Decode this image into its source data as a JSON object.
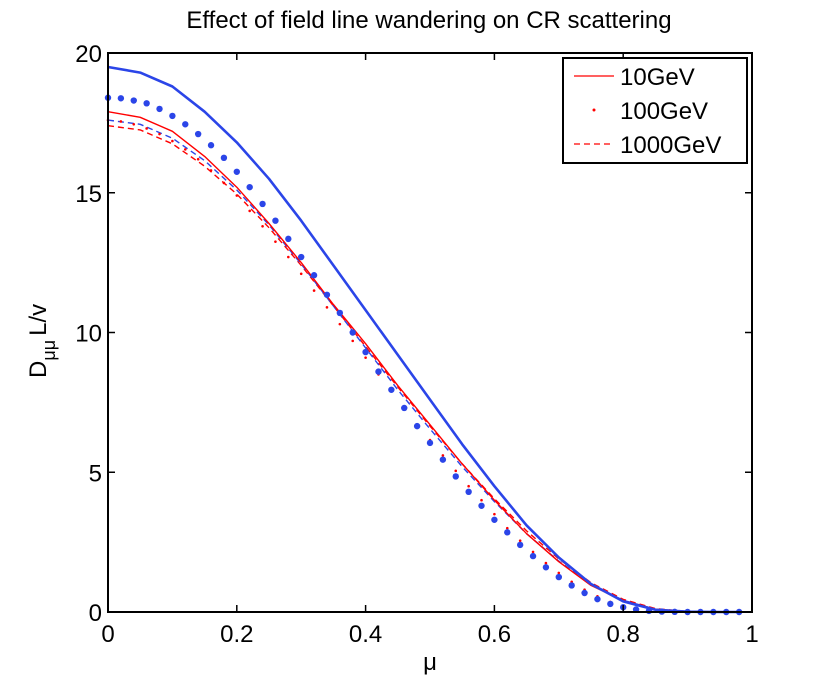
{
  "chart_data": {
    "type": "line",
    "title": "Effect of field line wandering on CR scattering",
    "xlabel": "μ",
    "ylabel": "D_μμ L/v",
    "ylabel_main": "D",
    "ylabel_sub": "μμ",
    "ylabel_tail": "L/v",
    "xlim": [
      0,
      1
    ],
    "ylim": [
      0,
      20
    ],
    "xticks": [
      0,
      0.2,
      0.4,
      0.6,
      0.8,
      1
    ],
    "xtick_labels": [
      "0",
      "0.2",
      "0.4",
      "0.6",
      "0.8",
      "1"
    ],
    "yticks": [
      0,
      5,
      10,
      15,
      20
    ],
    "ytick_labels": [
      "0",
      "5",
      "10",
      "15",
      "20"
    ],
    "legend": {
      "position": "top-right",
      "entries": [
        {
          "label": "10GeV",
          "style": "solid",
          "color": "#ff0000"
        },
        {
          "label": "100GeV",
          "style": "dotted",
          "color": "#ff0000"
        },
        {
          "label": "1000GeV",
          "style": "dashed",
          "color": "#ff0000"
        }
      ]
    },
    "series": [
      {
        "name": "10GeV (red)",
        "color": "#ff0000",
        "style": "solid",
        "x": [
          0,
          0.05,
          0.1,
          0.15,
          0.2,
          0.25,
          0.3,
          0.35,
          0.4,
          0.45,
          0.5,
          0.55,
          0.6,
          0.65,
          0.7,
          0.75,
          0.8,
          0.85,
          0.9,
          0.95,
          0.98
        ],
        "y": [
          17.9,
          17.7,
          17.2,
          16.3,
          15.2,
          13.9,
          12.5,
          11.0,
          9.6,
          8.1,
          6.7,
          5.3,
          4.0,
          2.8,
          1.8,
          0.95,
          0.4,
          0.1,
          0.02,
          0.0,
          0.0
        ]
      },
      {
        "name": "10GeV (blue)",
        "color": "#2b45e8",
        "style": "solid",
        "x": [
          0,
          0.05,
          0.1,
          0.15,
          0.2,
          0.25,
          0.3,
          0.35,
          0.4,
          0.45,
          0.5,
          0.55,
          0.6,
          0.65,
          0.7,
          0.75,
          0.8,
          0.85,
          0.9,
          0.95,
          0.98
        ],
        "y": [
          19.5,
          19.3,
          18.8,
          17.9,
          16.8,
          15.5,
          14.0,
          12.4,
          10.8,
          9.2,
          7.6,
          6.0,
          4.5,
          3.1,
          1.95,
          1.0,
          0.38,
          0.08,
          0.01,
          0.0,
          0.0
        ]
      },
      {
        "name": "100GeV (red)",
        "color": "#ff0000",
        "style": "dotted",
        "x": [
          0,
          0.02,
          0.04,
          0.06,
          0.08,
          0.1,
          0.12,
          0.14,
          0.16,
          0.18,
          0.2,
          0.22,
          0.24,
          0.26,
          0.28,
          0.3,
          0.32,
          0.34,
          0.36,
          0.38,
          0.4,
          0.42,
          0.44,
          0.46,
          0.48,
          0.5,
          0.52,
          0.54,
          0.56,
          0.58,
          0.6,
          0.62,
          0.64,
          0.66,
          0.68,
          0.7,
          0.72,
          0.74,
          0.76,
          0.78,
          0.8,
          0.82,
          0.84,
          0.86,
          0.88,
          0.9,
          0.92,
          0.94,
          0.96,
          0.98
        ],
        "y": [
          17.6,
          17.55,
          17.45,
          17.3,
          17.1,
          16.85,
          16.55,
          16.2,
          15.8,
          15.35,
          14.9,
          14.35,
          13.8,
          13.25,
          12.7,
          12.1,
          11.5,
          10.9,
          10.3,
          9.7,
          9.1,
          8.5,
          7.9,
          7.3,
          6.7,
          6.15,
          5.6,
          5.05,
          4.5,
          4.0,
          3.5,
          3.0,
          2.55,
          2.15,
          1.75,
          1.4,
          1.08,
          0.8,
          0.56,
          0.36,
          0.22,
          0.12,
          0.06,
          0.03,
          0.01,
          0.0,
          0.0,
          0.0,
          0.0,
          0.0
        ]
      },
      {
        "name": "100GeV (blue)",
        "color": "#2b45e8",
        "style": "dotted",
        "x": [
          0,
          0.02,
          0.04,
          0.06,
          0.08,
          0.1,
          0.12,
          0.14,
          0.16,
          0.18,
          0.2,
          0.22,
          0.24,
          0.26,
          0.28,
          0.3,
          0.32,
          0.34,
          0.36,
          0.38,
          0.4,
          0.42,
          0.44,
          0.46,
          0.48,
          0.5,
          0.52,
          0.54,
          0.56,
          0.58,
          0.6,
          0.62,
          0.64,
          0.66,
          0.68,
          0.7,
          0.72,
          0.74,
          0.76,
          0.78,
          0.8,
          0.82,
          0.84,
          0.86,
          0.88,
          0.9,
          0.92,
          0.94,
          0.96,
          0.98
        ],
        "y": [
          18.4,
          18.38,
          18.3,
          18.2,
          18.0,
          17.75,
          17.45,
          17.1,
          16.7,
          16.25,
          15.75,
          15.2,
          14.6,
          14.0,
          13.35,
          12.7,
          12.05,
          11.35,
          10.7,
          10.0,
          9.3,
          8.6,
          7.95,
          7.3,
          6.65,
          6.05,
          5.45,
          4.85,
          4.3,
          3.8,
          3.3,
          2.85,
          2.4,
          2.0,
          1.6,
          1.25,
          0.95,
          0.68,
          0.46,
          0.29,
          0.17,
          0.09,
          0.04,
          0.015,
          0.005,
          0.0,
          0.0,
          0.0,
          0.0,
          0.0
        ]
      },
      {
        "name": "1000GeV (red)",
        "color": "#ff0000",
        "style": "dashed",
        "x": [
          0,
          0.05,
          0.1,
          0.15,
          0.2,
          0.25,
          0.3,
          0.35,
          0.4,
          0.45,
          0.5,
          0.55,
          0.6,
          0.65,
          0.7,
          0.75,
          0.8,
          0.85,
          0.9,
          0.95,
          0.98
        ],
        "y": [
          17.4,
          17.25,
          16.75,
          15.95,
          14.95,
          13.75,
          12.4,
          10.95,
          9.5,
          8.05,
          6.65,
          5.3,
          4.05,
          2.9,
          1.9,
          1.05,
          0.45,
          0.12,
          0.02,
          0.0,
          0.0
        ]
      },
      {
        "name": "1000GeV (blue)",
        "color": "#2b45e8",
        "style": "dashed",
        "x": [
          0,
          0.05,
          0.1,
          0.15,
          0.2,
          0.25,
          0.3,
          0.35,
          0.4,
          0.45,
          0.5,
          0.55,
          0.6,
          0.65,
          0.7,
          0.75,
          0.8,
          0.85,
          0.9,
          0.95,
          0.98
        ],
        "y": [
          17.6,
          17.45,
          16.95,
          16.15,
          15.1,
          13.85,
          12.45,
          10.95,
          9.45,
          7.95,
          6.55,
          5.2,
          3.95,
          2.8,
          1.82,
          1.0,
          0.42,
          0.1,
          0.02,
          0.0,
          0.0
        ]
      }
    ]
  }
}
